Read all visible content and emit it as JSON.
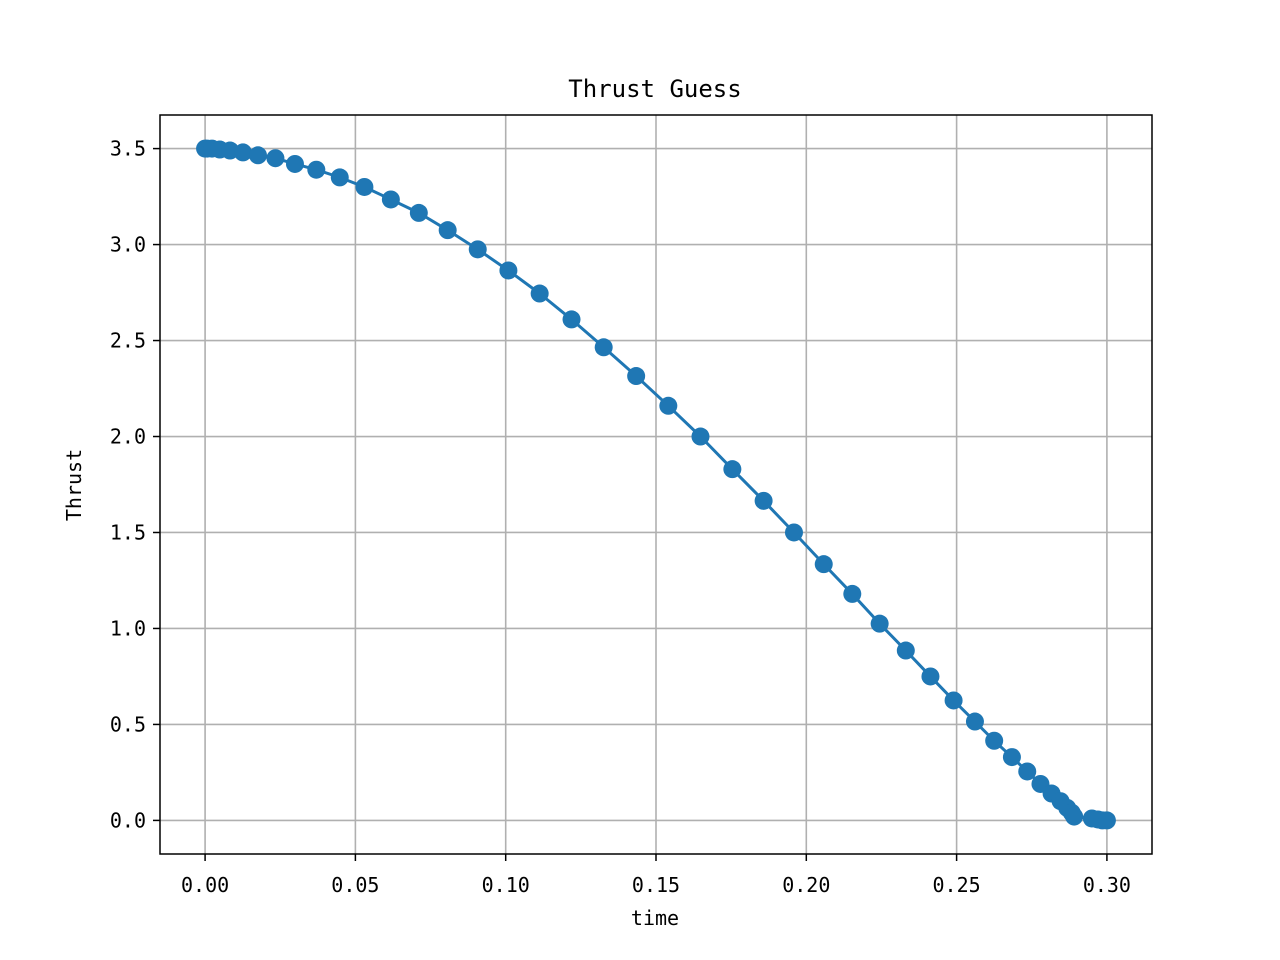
{
  "chart_data": {
    "type": "line",
    "title": "Thrust Guess",
    "xlabel": "time",
    "ylabel": "Thrust",
    "xlim": [
      -0.015,
      0.315
    ],
    "ylim": [
      -0.175,
      3.675
    ],
    "grid": true,
    "xticks": [
      0.0,
      0.05,
      0.1,
      0.15,
      0.2,
      0.25,
      0.3
    ],
    "xtick_labels": [
      "0.00",
      "0.05",
      "0.10",
      "0.15",
      "0.20",
      "0.25",
      "0.30"
    ],
    "yticks": [
      0.0,
      0.5,
      1.0,
      1.5,
      2.0,
      2.5,
      3.0,
      3.5
    ],
    "ytick_labels": [
      "0.0",
      "0.5",
      "1.0",
      "1.5",
      "2.0",
      "2.5",
      "3.0",
      "3.5"
    ],
    "series": [
      {
        "color": "#1f77b4",
        "marker": "circle",
        "x": [
          0.0,
          0.0007,
          0.0023,
          0.0049,
          0.0083,
          0.0126,
          0.0176,
          0.0234,
          0.0299,
          0.037,
          0.0448,
          0.053,
          0.0618,
          0.0711,
          0.0807,
          0.0907,
          0.1009,
          0.1113,
          0.1219,
          0.1326,
          0.1434,
          0.1541,
          0.1648,
          0.1754,
          0.1858,
          0.1959,
          0.2058,
          0.2153,
          0.2244,
          0.2331,
          0.2413,
          0.249,
          0.2561,
          0.2625,
          0.2684,
          0.2735,
          0.2779,
          0.2816,
          0.2846,
          0.2868,
          0.2883,
          0.2891,
          0.295,
          0.297,
          0.2985,
          0.3
        ],
        "y": [
          3.5,
          3.5,
          3.5,
          3.495,
          3.49,
          3.48,
          3.465,
          3.45,
          3.42,
          3.39,
          3.35,
          3.3,
          3.235,
          3.165,
          3.075,
          2.975,
          2.865,
          2.745,
          2.61,
          2.465,
          2.315,
          2.16,
          2.0,
          1.83,
          1.665,
          1.5,
          1.335,
          1.18,
          1.025,
          0.885,
          0.75,
          0.625,
          0.515,
          0.415,
          0.33,
          0.255,
          0.19,
          0.14,
          0.1,
          0.065,
          0.04,
          0.02,
          0.01,
          0.005,
          0.0,
          0.0
        ]
      }
    ]
  }
}
